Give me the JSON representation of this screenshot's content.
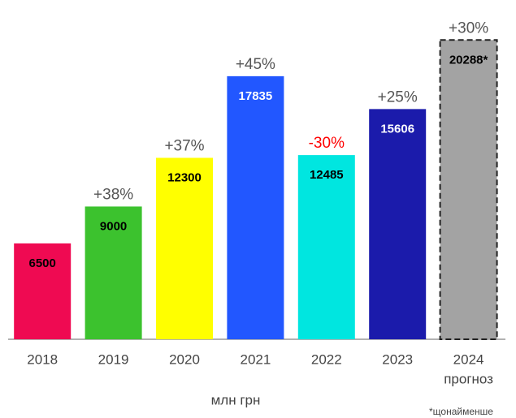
{
  "chart_data": {
    "type": "bar",
    "categories": [
      "2018",
      "2019",
      "2020",
      "2021",
      "2022",
      "2023",
      "2024"
    ],
    "values": [
      6500,
      9000,
      12300,
      17835,
      12485,
      15606,
      20288
    ],
    "value_labels": [
      "6500",
      "9000",
      "12300",
      "17835",
      "12485",
      "15606",
      "20288*"
    ],
    "value_label_colors": [
      "#000000",
      "#000000",
      "#000000",
      "#ffffff",
      "#000000",
      "#ffffff",
      "#000000"
    ],
    "colors": [
      "#ef0a52",
      "#3cc22e",
      "#ffff00",
      "#2257ff",
      "#00e6e0",
      "#1b1bab",
      "#a3a3a3"
    ],
    "dashed": [
      false,
      false,
      false,
      false,
      false,
      false,
      true
    ],
    "changes": [
      null,
      "+38%",
      "+37%",
      "+45%",
      "-30%",
      "+25%",
      "+30%"
    ],
    "change_colors": [
      "#555555",
      "#555555",
      "#555555",
      "#555555",
      "#ff0000",
      "#555555",
      "#555555"
    ],
    "category_notes": [
      null,
      null,
      null,
      null,
      null,
      null,
      "прогноз"
    ],
    "unit_label": "млн грн",
    "footnote": "*щонайменше",
    "ylim": [
      0,
      23000
    ]
  }
}
